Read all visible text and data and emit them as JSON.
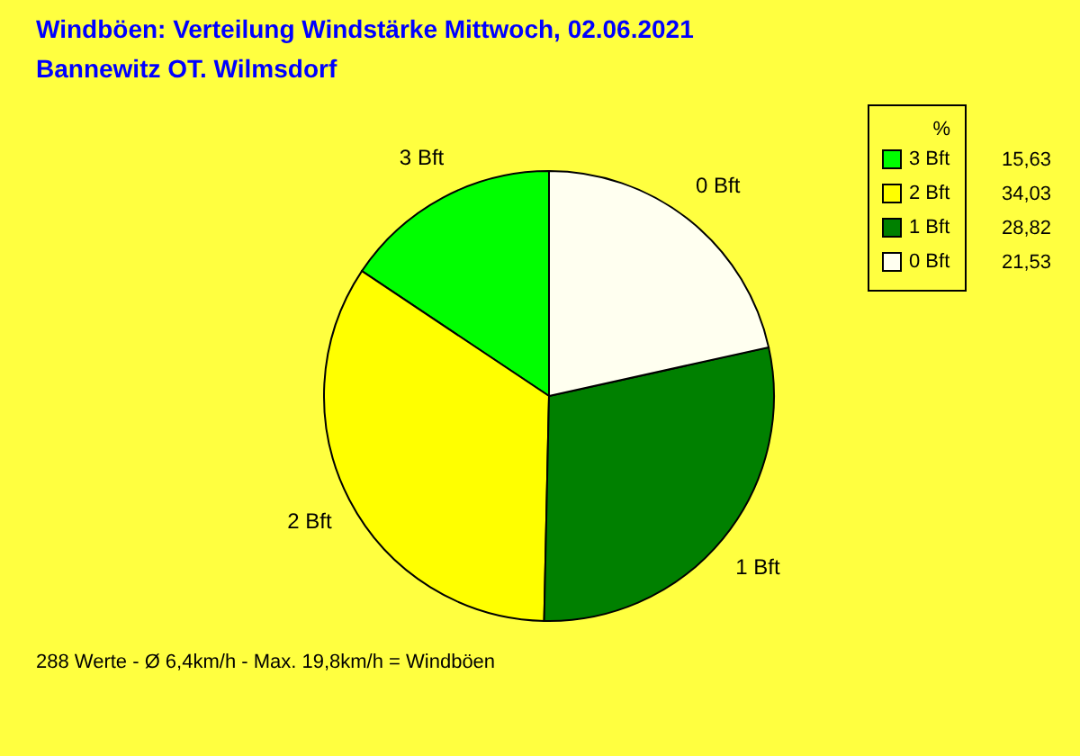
{
  "chart_data": {
    "type": "pie",
    "title": "Windböen: Verteilung Windstärke  Mittwoch, 02.06.2021",
    "subtitle": "Bannewitz OT. Wilmsdorf",
    "categories": [
      "3 Bft",
      "2 Bft",
      "1 Bft",
      "0 Bft"
    ],
    "values": [
      15.63,
      34.03,
      28.82,
      21.53
    ],
    "value_labels": [
      "15,63",
      "34,03",
      "28,82",
      "21,53"
    ],
    "colors": [
      "#00ff00",
      "#ffff00",
      "#008000",
      "#fffff0"
    ],
    "legend_title": "%",
    "legend": "top right",
    "annotations": [
      "288 Werte   -   Ø 6,4km/h  -  Max. 19,8km/h = Windböen"
    ]
  }
}
